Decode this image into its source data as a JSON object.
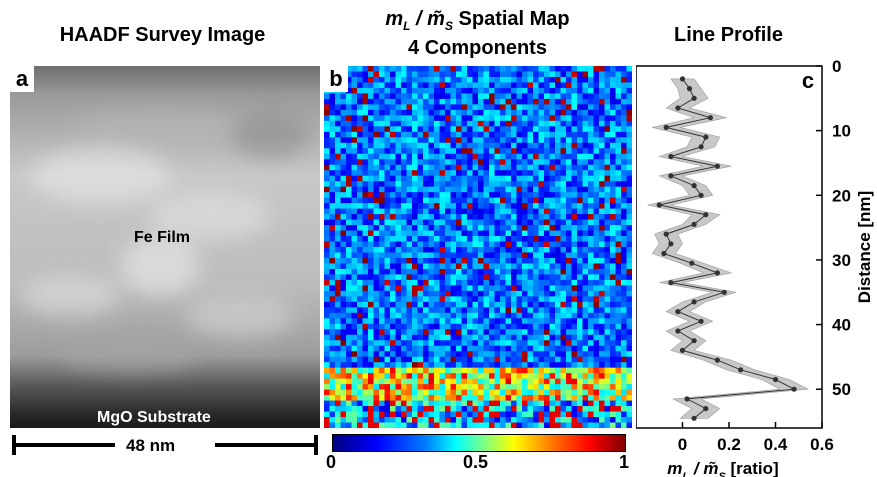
{
  "panels": {
    "a": {
      "letter": "a",
      "title": "HAADF Survey Image",
      "labels": {
        "film": "Fe Film",
        "substrate": "MgO Substrate"
      },
      "scale_bar": "48 nm"
    },
    "b": {
      "letter": "b",
      "title_line1_prefix": "m",
      "title_line1_sub": "L",
      "title_line1_mid": " / m̃",
      "title_line1_sub2": "S",
      "title_line1_suffix": " Spatial Map",
      "title_line2": "4 Components",
      "colorbar": {
        "ticks": [
          "0",
          "0.5",
          "1"
        ],
        "min": 0,
        "max": 1
      }
    },
    "c": {
      "letter": "c",
      "title": "Line Profile"
    }
  },
  "chart_data": {
    "type": "line",
    "title": "Line Profile",
    "xlabel": "m_L / m̃_S [ratio]",
    "ylabel": "Distance [nm]",
    "xlim": [
      -0.2,
      0.6
    ],
    "ylim": [
      0,
      56
    ],
    "x_ticks": [
      "0",
      "0.2",
      "0.4",
      "0.6"
    ],
    "y_ticks": [
      "0",
      "10",
      "20",
      "30",
      "40",
      "50"
    ],
    "x_tick_values": [
      0,
      0.2,
      0.4,
      0.6
    ],
    "y_tick_values": [
      0,
      10,
      20,
      30,
      40,
      50
    ],
    "y_inverted": true,
    "series": [
      {
        "distance": [
          2,
          3.5,
          5,
          6.5,
          8,
          9.5,
          11,
          12.5,
          14,
          15.5,
          17,
          18.5,
          20,
          21.5,
          23,
          24.5,
          26,
          27.5,
          29,
          30.5,
          32,
          33.5,
          35,
          36.5,
          38,
          39.5,
          41,
          42.5,
          44,
          45.5,
          47,
          48.5,
          50,
          51.5,
          53,
          54.5
        ],
        "ratio": [
          0.0,
          0.03,
          0.05,
          -0.02,
          0.12,
          -0.07,
          0.1,
          0.08,
          -0.05,
          0.15,
          -0.05,
          0.05,
          0.08,
          -0.1,
          0.1,
          0.05,
          -0.07,
          -0.05,
          -0.08,
          0.04,
          0.15,
          -0.05,
          0.18,
          0.05,
          -0.02,
          0.08,
          -0.02,
          0.05,
          0.0,
          0.15,
          0.25,
          0.4,
          0.48,
          0.02,
          0.1,
          0.05
        ],
        "error": [
          0.05,
          0.05,
          0.06,
          0.05,
          0.07,
          0.06,
          0.06,
          0.06,
          0.05,
          0.06,
          0.05,
          0.05,
          0.05,
          0.05,
          0.06,
          0.05,
          0.05,
          0.05,
          0.05,
          0.05,
          0.06,
          0.05,
          0.05,
          0.05,
          0.05,
          0.05,
          0.05,
          0.05,
          0.05,
          0.06,
          0.06,
          0.06,
          0.06,
          0.06,
          0.06,
          0.06
        ]
      }
    ]
  }
}
